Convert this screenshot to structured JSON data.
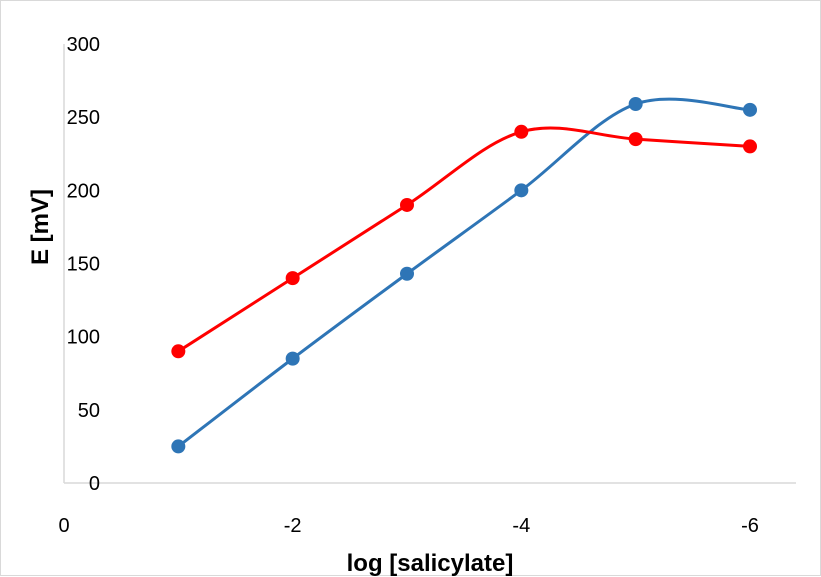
{
  "chart_data": {
    "type": "line",
    "title": "",
    "xlabel": "log [salicylate]",
    "ylabel": "E [mV]",
    "x_ticks": [
      0,
      -2,
      -4,
      -6
    ],
    "x_tick_labels": [
      "0",
      "-2",
      "-4",
      "-6"
    ],
    "y_ticks": [
      0,
      50,
      100,
      150,
      200,
      250,
      300
    ],
    "y_tick_labels": [
      "0",
      "50",
      "100",
      "150",
      "200",
      "250",
      "300"
    ],
    "xlim": [
      0,
      -6
    ],
    "ylim": [
      0,
      300
    ],
    "x_reversed": true,
    "grid": false,
    "legend": "none",
    "smooth": true,
    "x": [
      -1,
      -2,
      -3,
      -4,
      -5,
      -6
    ],
    "series": [
      {
        "color": "#2e75b6",
        "values": [
          25,
          85,
          143,
          200,
          259,
          255
        ]
      },
      {
        "color": "#ff0000",
        "values": [
          90,
          140,
          190,
          240,
          235,
          230
        ]
      }
    ]
  }
}
